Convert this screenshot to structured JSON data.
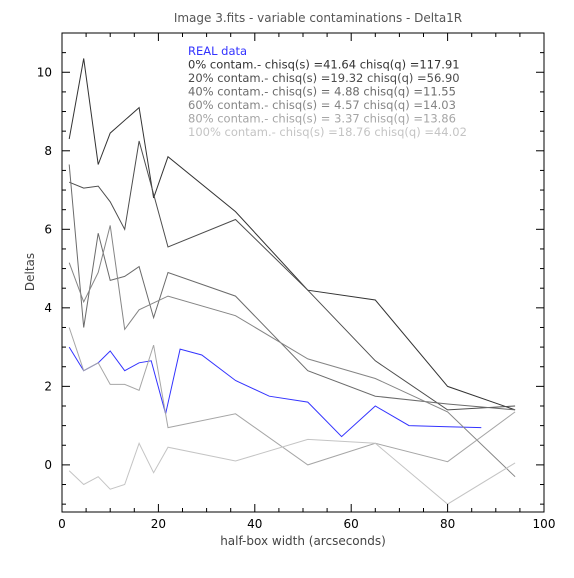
{
  "chart_data": {
    "type": "line",
    "title": "Image 3.fits - variable contaminations - Delta1R",
    "xlabel": "half-box width (arcseconds)",
    "ylabel": "Deltas",
    "xlim": [
      0,
      100
    ],
    "ylim": [
      -1.2,
      11.0
    ],
    "xticks": [
      0,
      20,
      40,
      60,
      80,
      100
    ],
    "yticks": [
      0,
      2,
      4,
      6,
      8,
      10
    ],
    "x_tick_labels": [
      "0",
      "20",
      "40",
      "60",
      "80",
      "100"
    ],
    "y_tick_labels": [
      "0",
      "2",
      "4",
      "6",
      "8",
      "10"
    ],
    "grid": false,
    "legend_position": "top-right",
    "series": [
      {
        "name": "REAL data",
        "color": "#3333ff",
        "points": [
          [
            1.5,
            3.0
          ],
          [
            4.5,
            2.4
          ],
          [
            7.5,
            2.6
          ],
          [
            10,
            2.9
          ],
          [
            13,
            2.4
          ],
          [
            16,
            2.6
          ],
          [
            18.5,
            2.65
          ],
          [
            21.5,
            1.3
          ],
          [
            24.5,
            2.95
          ],
          [
            29,
            2.8
          ],
          [
            36,
            2.15
          ],
          [
            43,
            1.75
          ],
          [
            51,
            1.6
          ],
          [
            58,
            0.72
          ],
          [
            65,
            1.5
          ],
          [
            72,
            1.0
          ],
          [
            80,
            0.97
          ],
          [
            87,
            0.95
          ]
        ]
      },
      {
        "name": "0% contam.- chisq(s) =41.64 chisq(q) =117.91",
        "color": "#333333",
        "points": [
          [
            1.5,
            8.3
          ],
          [
            4.5,
            10.35
          ],
          [
            7.5,
            7.65
          ],
          [
            10,
            8.45
          ],
          [
            16,
            9.1
          ],
          [
            19,
            6.8
          ],
          [
            22,
            7.85
          ],
          [
            36,
            6.45
          ],
          [
            51,
            4.45
          ],
          [
            65,
            4.2
          ],
          [
            80,
            2.0
          ],
          [
            94,
            1.4
          ]
        ]
      },
      {
        "name": "20% contam.- chisq(s) =19.32 chisq(q) =56.90",
        "color": "#4d4d4d",
        "points": [
          [
            1.5,
            7.2
          ],
          [
            4.5,
            7.05
          ],
          [
            7.5,
            7.1
          ],
          [
            10,
            6.7
          ],
          [
            13,
            6.0
          ],
          [
            16,
            8.25
          ],
          [
            22,
            5.55
          ],
          [
            36,
            6.25
          ],
          [
            51,
            4.45
          ],
          [
            65,
            2.65
          ],
          [
            80,
            1.4
          ],
          [
            94,
            1.5
          ]
        ]
      },
      {
        "name": "40% contam.- chisq(s) = 4.88 chisq(q) =11.55",
        "color": "#6b6b6b",
        "points": [
          [
            1.5,
            7.65
          ],
          [
            4.5,
            3.5
          ],
          [
            7.5,
            5.9
          ],
          [
            10,
            4.7
          ],
          [
            13,
            4.8
          ],
          [
            16,
            5.05
          ],
          [
            19,
            3.75
          ],
          [
            22,
            4.9
          ],
          [
            36,
            4.3
          ],
          [
            51,
            2.4
          ],
          [
            65,
            1.75
          ],
          [
            80,
            1.55
          ],
          [
            94,
            1.4
          ]
        ]
      },
      {
        "name": "60% contam.- chisq(s) = 4.57 chisq(q) =14.03",
        "color": "#858585",
        "points": [
          [
            1.5,
            5.15
          ],
          [
            4.5,
            4.15
          ],
          [
            7.5,
            4.9
          ],
          [
            10,
            6.1
          ],
          [
            13,
            3.45
          ],
          [
            16,
            3.95
          ],
          [
            22,
            4.3
          ],
          [
            36,
            3.8
          ],
          [
            51,
            2.7
          ],
          [
            65,
            2.2
          ],
          [
            80,
            1.35
          ],
          [
            94,
            -0.3
          ]
        ]
      },
      {
        "name": "80% contam.- chisq(s) = 3.37 chisq(q) =13.86",
        "color": "#a6a6a6",
        "points": [
          [
            1.5,
            3.5
          ],
          [
            4.5,
            2.4
          ],
          [
            7.5,
            2.6
          ],
          [
            10,
            2.05
          ],
          [
            13,
            2.05
          ],
          [
            16,
            1.9
          ],
          [
            19,
            3.05
          ],
          [
            22,
            0.95
          ],
          [
            36,
            1.3
          ],
          [
            51,
            0.0
          ],
          [
            65,
            0.55
          ],
          [
            80,
            0.08
          ],
          [
            94,
            1.35
          ]
        ]
      },
      {
        "name": "100% contam.- chisq(s) =18.76 chisq(q) =44.02",
        "color": "#c4c4c4",
        "points": [
          [
            1.5,
            -0.15
          ],
          [
            4.5,
            -0.5
          ],
          [
            7.5,
            -0.3
          ],
          [
            10,
            -0.62
          ],
          [
            13,
            -0.5
          ],
          [
            16,
            0.55
          ],
          [
            19,
            -0.2
          ],
          [
            22,
            0.45
          ],
          [
            36,
            0.1
          ],
          [
            51,
            0.65
          ],
          [
            65,
            0.55
          ],
          [
            80,
            -1.0
          ],
          [
            94,
            0.05
          ]
        ]
      }
    ]
  }
}
